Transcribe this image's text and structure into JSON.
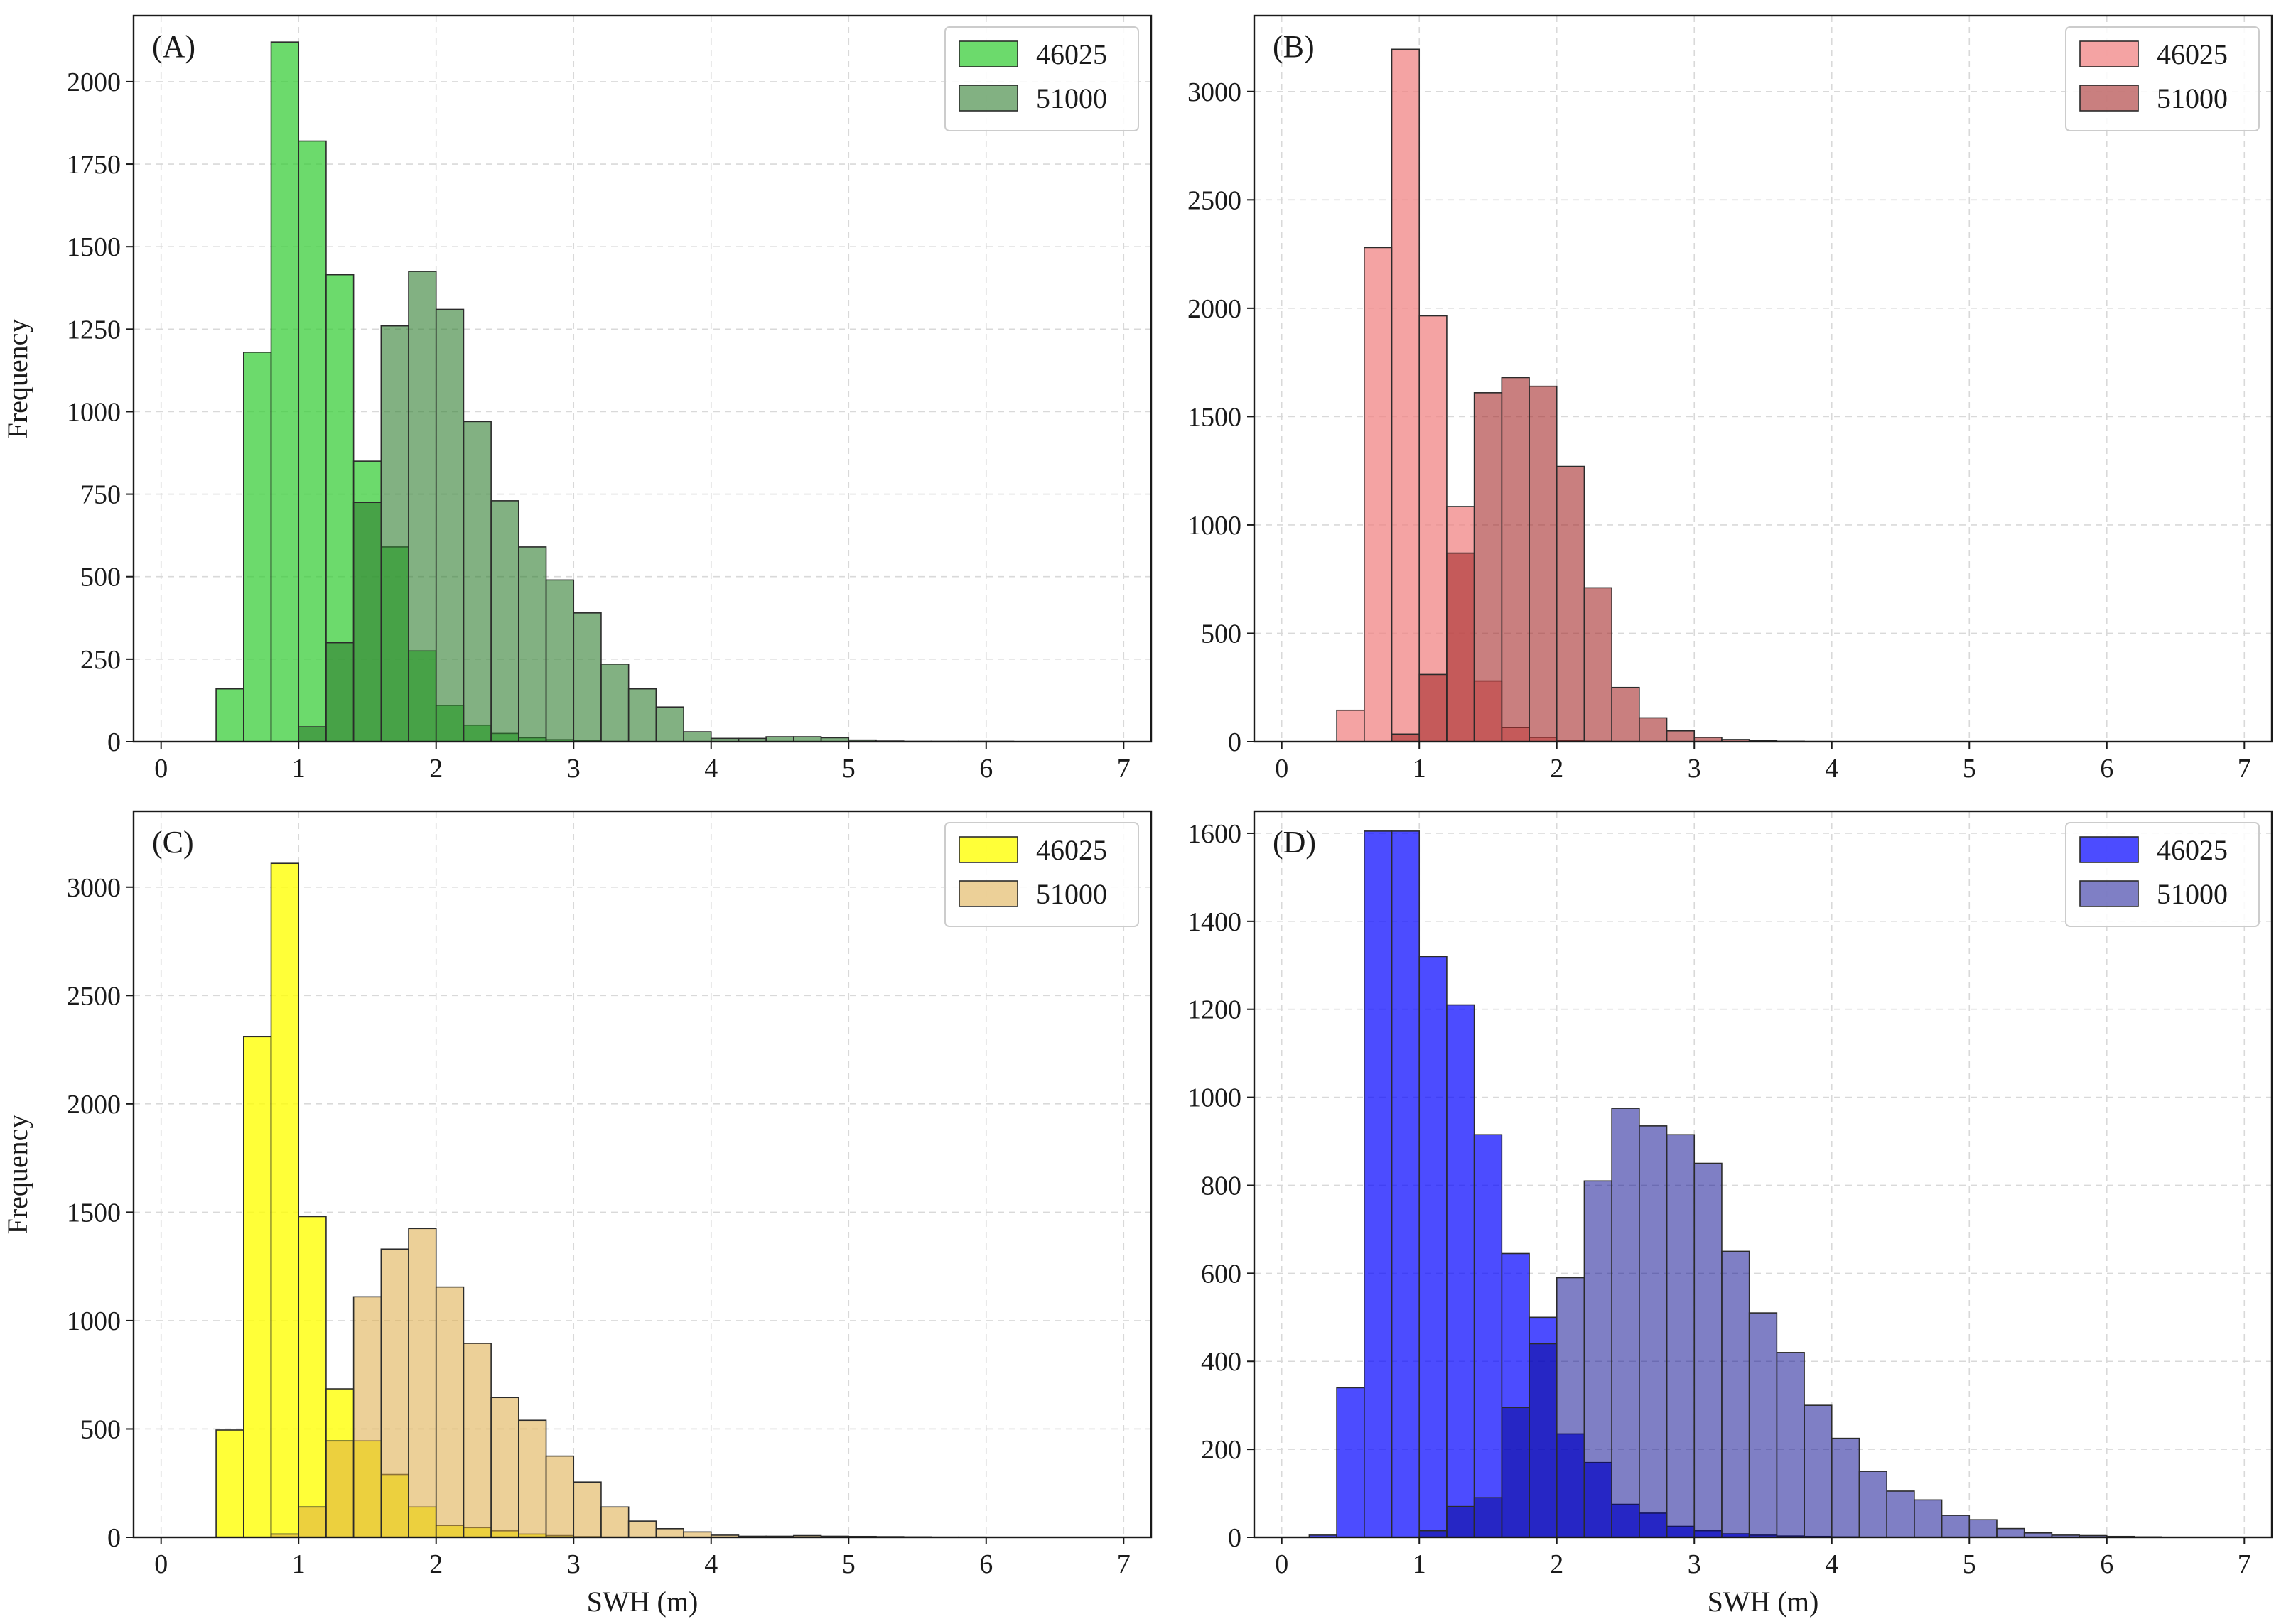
{
  "chart_data": [
    {
      "type": "bar",
      "panel_label": "(A)",
      "xlabel": "",
      "ylabel": "Frequency",
      "xlim": [
        -0.2,
        7.2
      ],
      "ylim": [
        0,
        2200
      ],
      "xticks": [
        0,
        1,
        2,
        3,
        4,
        5,
        6,
        7
      ],
      "yticks": [
        0,
        250,
        500,
        750,
        1000,
        1250,
        1500,
        1750,
        2000
      ],
      "grid": true,
      "legend_position": "top-right",
      "bin_start": 0.4,
      "bin_width": 0.2,
      "series": [
        {
          "name": "46025",
          "color": "#33cc33",
          "opacity": 0.72,
          "values": [
            160,
            1180,
            2120,
            1820,
            1415,
            850,
            590,
            275,
            110,
            50,
            25,
            12,
            6,
            3,
            1,
            0,
            0,
            0
          ]
        },
        {
          "name": "51000",
          "color": "#2e7d2e",
          "opacity": 0.6,
          "values": [
            0,
            0,
            0,
            45,
            300,
            725,
            1260,
            1425,
            1310,
            970,
            730,
            590,
            490,
            390,
            235,
            160,
            105,
            30,
            10,
            10,
            15,
            15,
            12,
            5,
            2,
            1,
            1,
            1,
            1,
            0,
            0,
            0
          ]
        }
      ]
    },
    {
      "type": "bar",
      "panel_label": "(B)",
      "xlabel": "",
      "ylabel": "",
      "xlim": [
        -0.2,
        7.2
      ],
      "ylim": [
        0,
        3350
      ],
      "xticks": [
        0,
        1,
        2,
        3,
        4,
        5,
        6,
        7
      ],
      "yticks": [
        0,
        500,
        1000,
        1500,
        2000,
        2500,
        3000
      ],
      "grid": true,
      "legend_position": "top-right",
      "bin_start": 0.4,
      "bin_width": 0.2,
      "series": [
        {
          "name": "46025",
          "color": "#f08080",
          "opacity": 0.72,
          "values": [
            145,
            2280,
            3195,
            1965,
            1085,
            280,
            65,
            20,
            5,
            2,
            1,
            0,
            0
          ]
        },
        {
          "name": "51000",
          "color": "#a52a2a",
          "opacity": 0.6,
          "values": [
            0,
            0,
            35,
            310,
            870,
            1610,
            1680,
            1640,
            1270,
            710,
            250,
            110,
            50,
            20,
            10,
            5,
            2,
            1,
            0,
            0
          ]
        }
      ]
    },
    {
      "type": "bar",
      "panel_label": "(C)",
      "xlabel": "SWH (m)",
      "ylabel": "Frequency",
      "xlim": [
        -0.2,
        7.2
      ],
      "ylim": [
        0,
        3350
      ],
      "xticks": [
        0,
        1,
        2,
        3,
        4,
        5,
        6,
        7
      ],
      "yticks": [
        0,
        500,
        1000,
        1500,
        2000,
        2500,
        3000
      ],
      "grid": true,
      "legend_position": "top-right",
      "bin_start": 0.4,
      "bin_width": 0.2,
      "series": [
        {
          "name": "46025",
          "color": "#ffff00",
          "opacity": 0.78,
          "values": [
            495,
            2310,
            3110,
            1480,
            685,
            445,
            290,
            140,
            55,
            45,
            30,
            15,
            8,
            3,
            1,
            0
          ]
        },
        {
          "name": "51000",
          "color": "#ddaa44",
          "opacity": 0.55,
          "values": [
            0,
            0,
            15,
            140,
            445,
            1110,
            1330,
            1425,
            1155,
            895,
            645,
            540,
            375,
            255,
            140,
            75,
            40,
            25,
            10,
            5,
            5,
            8,
            5,
            4,
            3,
            2,
            1,
            1,
            0,
            0,
            0,
            0
          ]
        }
      ]
    },
    {
      "type": "bar",
      "panel_label": "(D)",
      "xlabel": "SWH (m)",
      "ylabel": "",
      "xlim": [
        -0.2,
        7.2
      ],
      "ylim": [
        0,
        1650
      ],
      "xticks": [
        0,
        1,
        2,
        3,
        4,
        5,
        6,
        7
      ],
      "yticks": [
        0,
        200,
        400,
        600,
        800,
        1000,
        1200,
        1400,
        1600
      ],
      "grid": true,
      "legend_position": "top-right",
      "bin_start": 0.2,
      "bin_width": 0.2,
      "series": [
        {
          "name": "46025",
          "color": "#0000ff",
          "opacity": 0.7,
          "values": [
            5,
            340,
            1605,
            1605,
            1320,
            1210,
            915,
            645,
            500,
            235,
            170,
            75,
            55,
            25,
            15,
            8,
            5,
            3,
            2,
            1
          ]
        },
        {
          "name": "51000",
          "color": "#00008b",
          "opacity": 0.5,
          "values": [
            0,
            0,
            0,
            0,
            15,
            70,
            90,
            295,
            440,
            590,
            810,
            975,
            935,
            915,
            850,
            650,
            510,
            420,
            300,
            225,
            150,
            105,
            85,
            50,
            40,
            20,
            10,
            5,
            4,
            2,
            1,
            0
          ]
        }
      ]
    }
  ]
}
